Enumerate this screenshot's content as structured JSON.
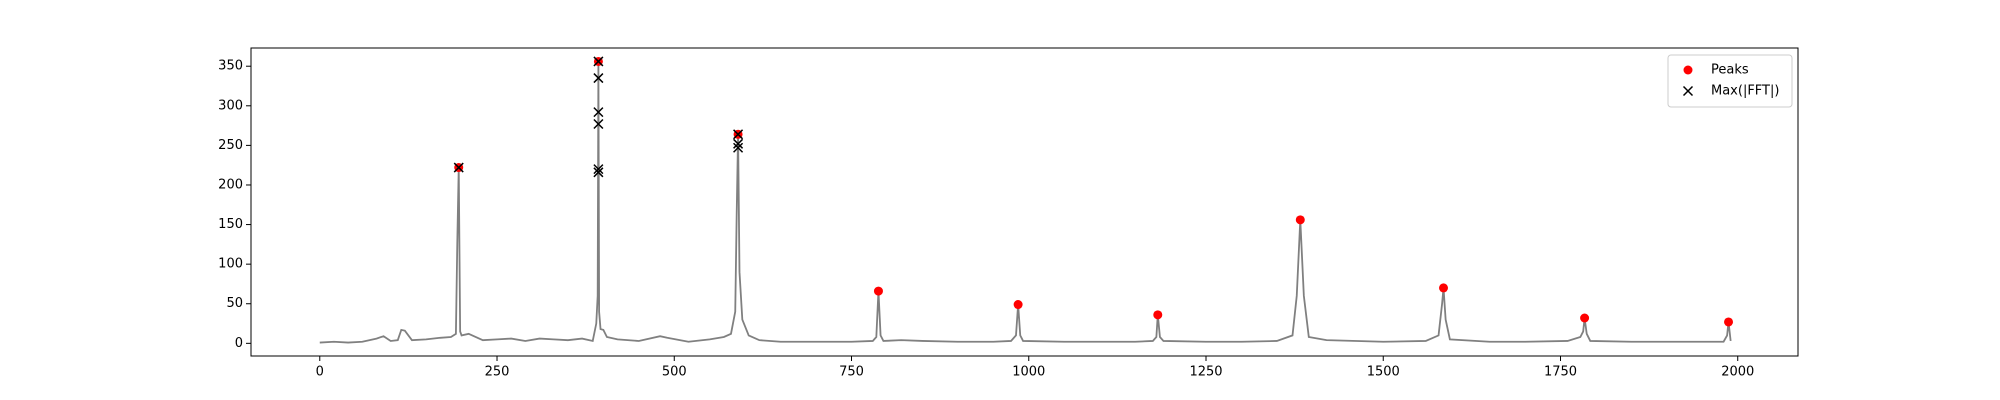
{
  "chart_data": {
    "type": "line",
    "xlim": [
      -97,
      2085
    ],
    "ylim": [
      -16,
      373
    ],
    "xticks": [
      0,
      250,
      500,
      750,
      1000,
      1250,
      1500,
      1750,
      2000
    ],
    "yticks": [
      0,
      50,
      100,
      150,
      200,
      250,
      300,
      350
    ],
    "grid": false,
    "legend": "upper right",
    "series": [
      {
        "type": "line",
        "color": "#808080",
        "x": [
          0,
          20,
          40,
          60,
          80,
          90,
          100,
          110,
          115,
          120,
          130,
          150,
          170,
          185,
          192,
          194,
          196,
          198,
          200,
          210,
          230,
          250,
          270,
          290,
          310,
          330,
          350,
          370,
          385,
          390,
          392,
          393,
          394,
          396,
          400,
          405,
          420,
          450,
          480,
          490,
          520,
          550,
          570,
          580,
          586,
          588,
          590,
          592,
          596,
          605,
          620,
          650,
          700,
          750,
          780,
          785,
          788,
          791,
          795,
          820,
          850,
          900,
          950,
          975,
          982,
          985,
          988,
          992,
          1050,
          1100,
          1150,
          1175,
          1180,
          1182,
          1185,
          1190,
          1250,
          1300,
          1350,
          1372,
          1378,
          1383,
          1388,
          1395,
          1420,
          1500,
          1560,
          1578,
          1583,
          1585,
          1588,
          1594,
          1650,
          1700,
          1760,
          1778,
          1782,
          1784,
          1787,
          1792,
          1850,
          1900,
          1950,
          1980,
          1985,
          1987,
          1990
        ],
        "values": [
          1,
          2,
          1,
          2,
          6,
          9,
          3,
          4,
          17,
          16,
          4,
          5,
          7,
          8,
          12,
          128,
          222,
          15,
          10,
          12,
          4,
          5,
          6,
          3,
          6,
          5,
          4,
          6,
          3,
          25,
          60,
          356,
          40,
          18,
          17,
          8,
          5,
          3,
          9,
          7,
          2,
          5,
          8,
          12,
          40,
          160,
          264,
          90,
          30,
          10,
          4,
          2,
          2,
          2,
          3,
          8,
          66,
          10,
          3,
          4,
          3,
          2,
          2,
          3,
          10,
          49,
          10,
          3,
          2,
          2,
          2,
          3,
          8,
          36,
          8,
          3,
          2,
          2,
          3,
          10,
          60,
          156,
          60,
          8,
          4,
          2,
          3,
          10,
          50,
          70,
          30,
          5,
          2,
          2,
          3,
          8,
          15,
          32,
          12,
          3,
          2,
          2,
          2,
          2,
          10,
          27,
          3
        ]
      },
      {
        "name": "Peaks",
        "type": "scatter",
        "marker": "o",
        "color": "#ff0000",
        "x": [
          196,
          393,
          590,
          788,
          985,
          1182,
          1383,
          1585,
          1784,
          1987
        ],
        "values": [
          222,
          356,
          264,
          66,
          49,
          36,
          156,
          70,
          32,
          27
        ]
      },
      {
        "name": "Max(|FFT|)",
        "type": "scatter",
        "marker": "x",
        "color": "#000000",
        "x": [
          196,
          393,
          393,
          393,
          393,
          393,
          393,
          590,
          590,
          590
        ],
        "values": [
          222,
          356,
          335,
          292,
          277,
          220,
          216,
          264,
          252,
          247
        ]
      }
    ]
  }
}
